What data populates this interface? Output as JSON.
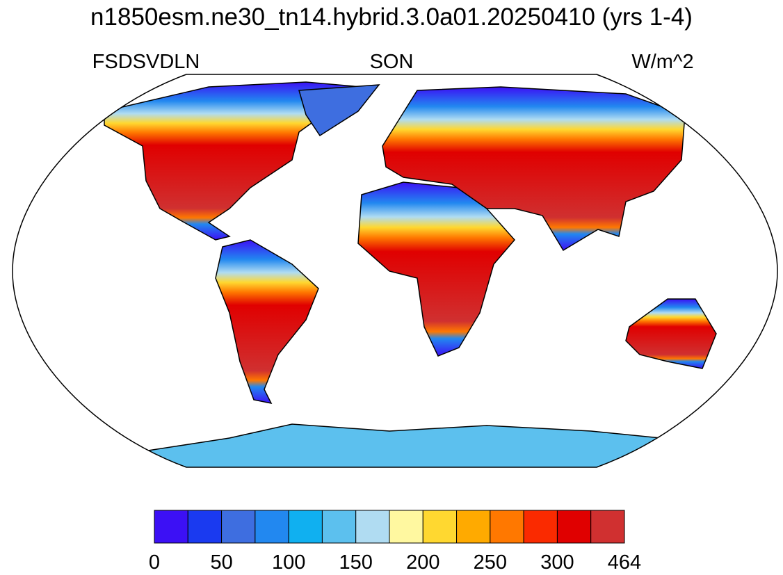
{
  "header": {
    "title": "n1850esm.ne30_tn14.hybrid.3.0a01.20250410 (yrs 1-4)",
    "left": "FSDSVDLN",
    "center": "SON",
    "right": "W/m^2"
  },
  "colorbar": {
    "labels": [
      0,
      50,
      100,
      150,
      200,
      250,
      300,
      464
    ],
    "colors": [
      "#3c10f5",
      "#1a3af0",
      "#3e6ee0",
      "#2288f0",
      "#10b0f0",
      "#5cc0ee",
      "#b0dcf2",
      "#fff8a0",
      "#ffd830",
      "#ffaa00",
      "#ff7800",
      "#fa2a00",
      "#e00000",
      "#d03030"
    ]
  }
}
